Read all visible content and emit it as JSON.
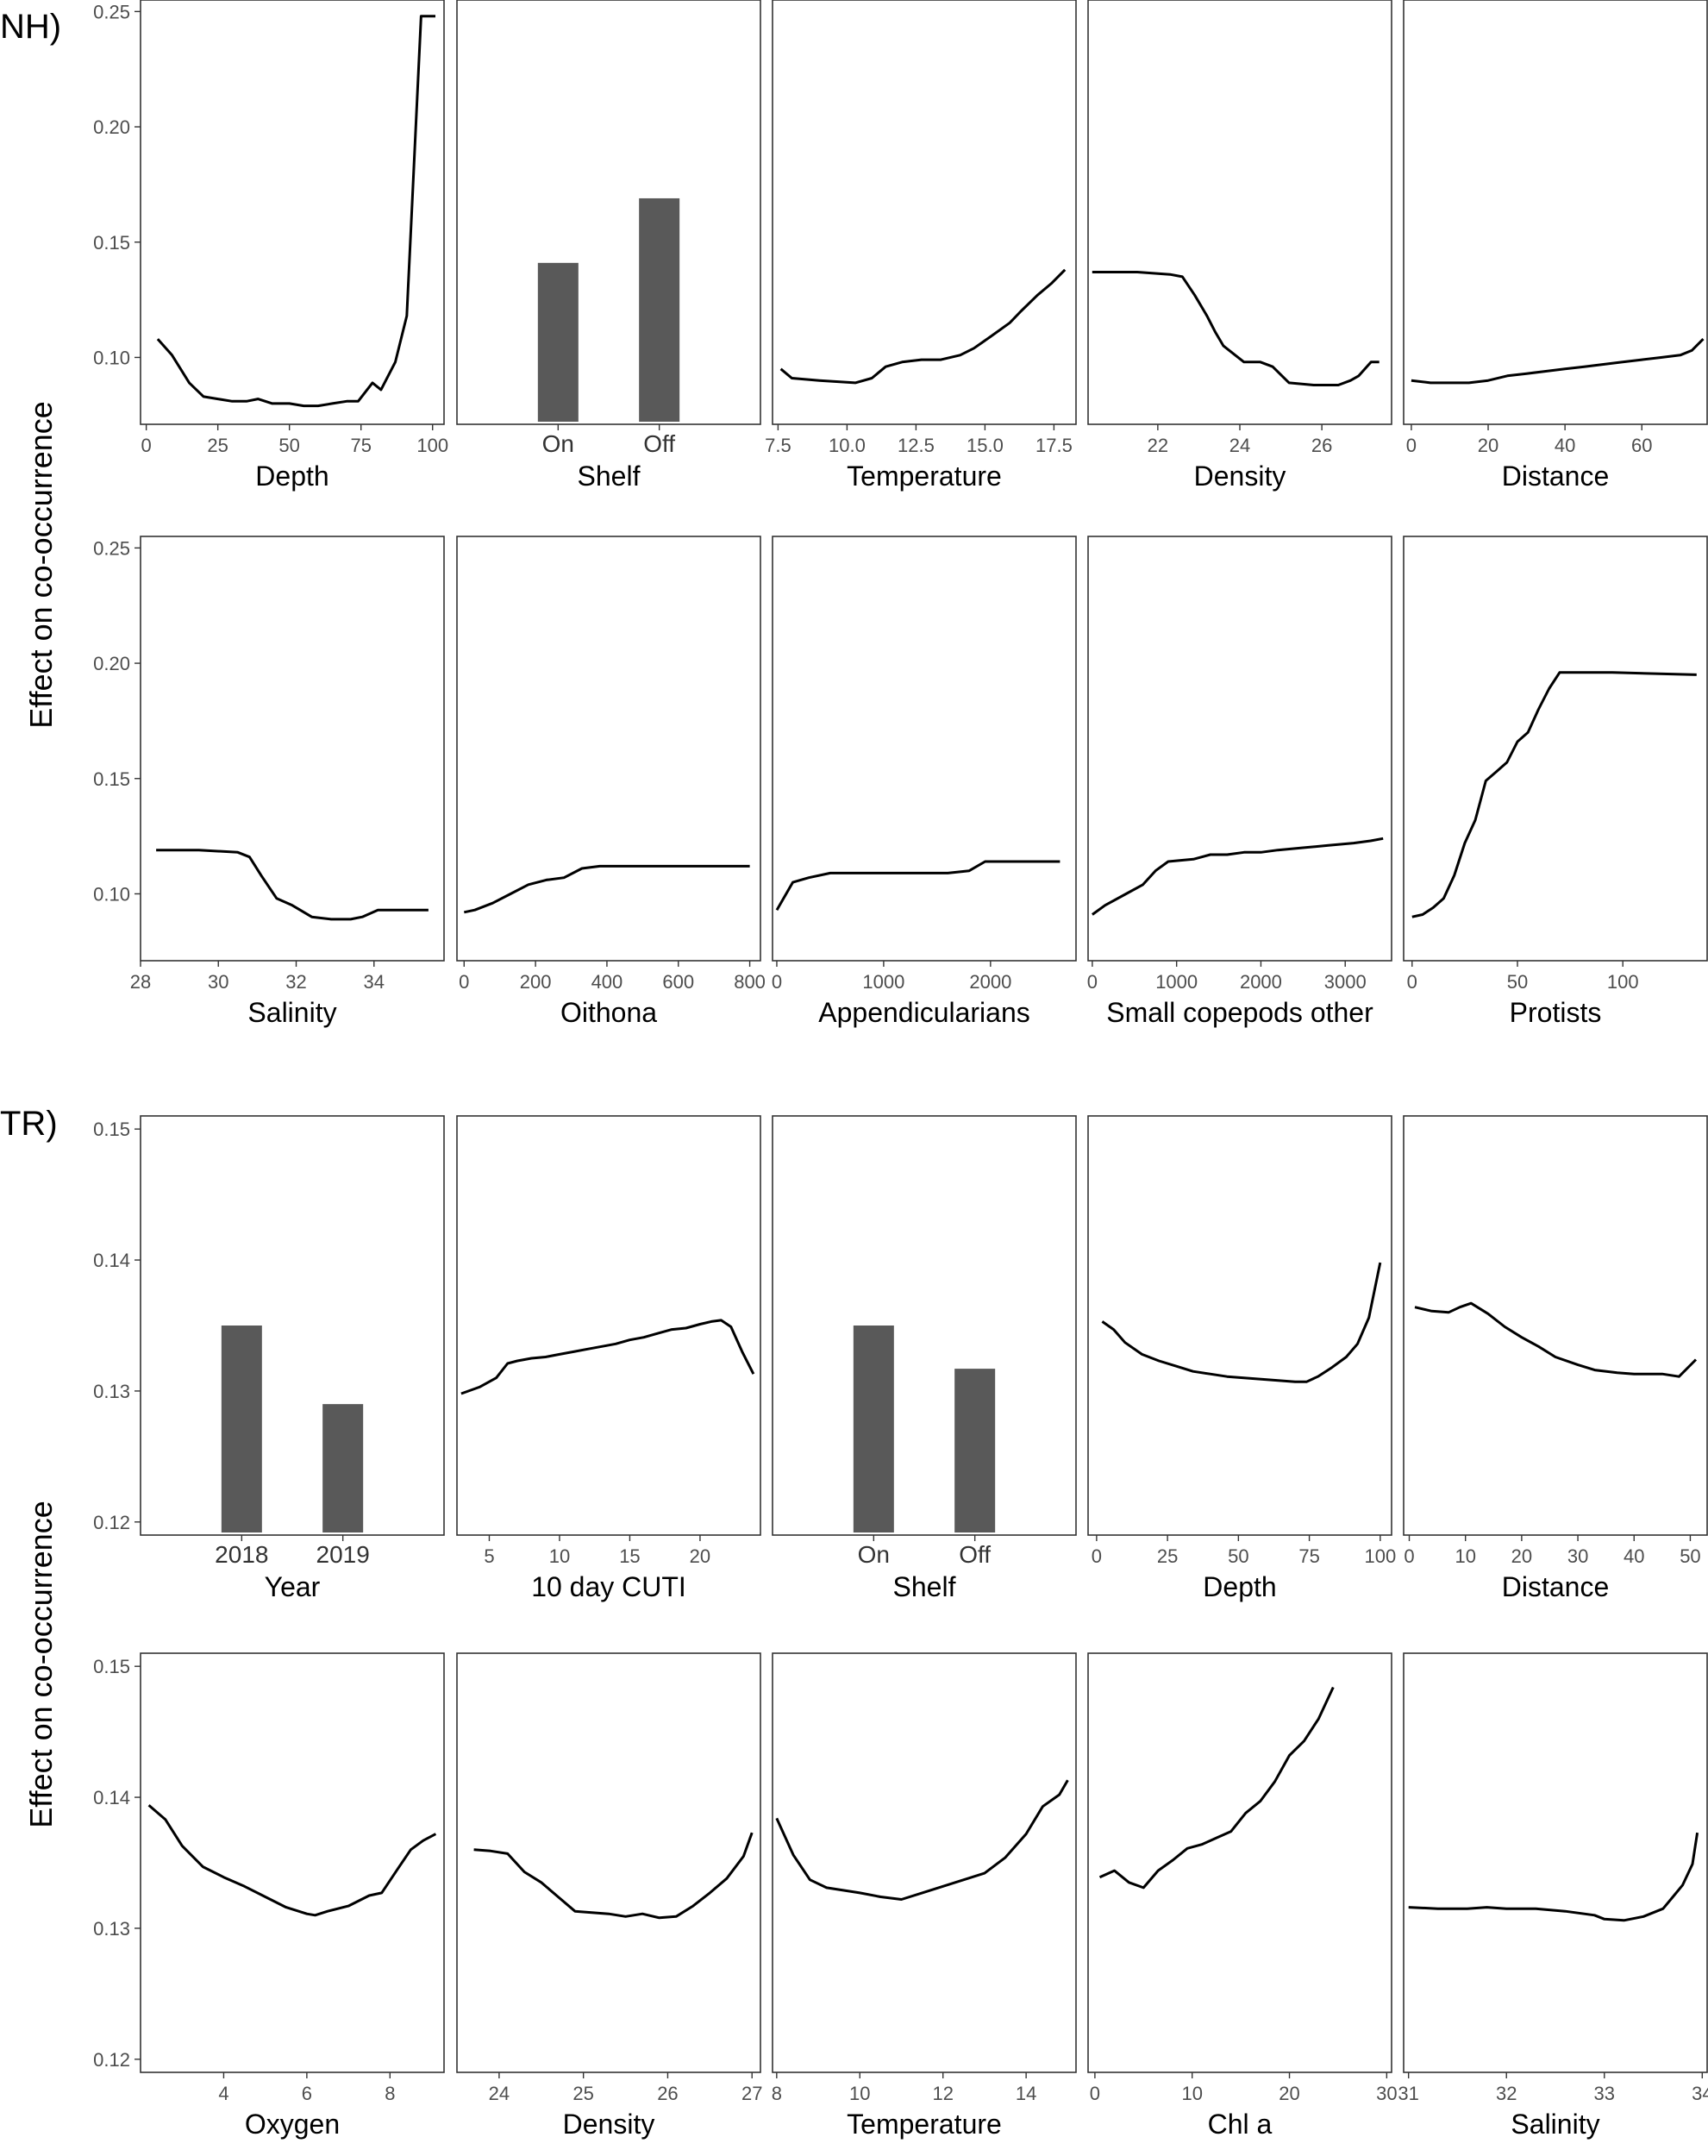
{
  "colors": {
    "bar": "#595959",
    "line": "#000000",
    "frame": "#333333",
    "tick_text": "#4d4d4d"
  },
  "groups": [
    {
      "label": "NH)",
      "ylabel": "Effect on co-occurrence"
    },
    {
      "label": "TR)",
      "ylabel": "Effect on co-occurrence"
    }
  ],
  "chart_data": [
    {
      "group": 0,
      "type": "line",
      "xlabel": "Depth",
      "xlim": [
        -2,
        104
      ],
      "xticks": [
        0,
        25,
        50,
        75,
        100
      ],
      "ylim": [
        0.071,
        0.255
      ],
      "yticks": [
        0.1,
        0.15,
        0.2,
        0.25
      ],
      "ytick_labels": [
        "0.10",
        "0.15",
        "0.20",
        "0.25"
      ],
      "x": [
        4,
        9,
        15,
        20,
        25,
        30,
        35,
        39,
        44,
        50,
        55,
        60,
        65,
        70,
        74,
        79,
        82,
        87,
        91,
        96,
        101
      ],
      "y": [
        0.108,
        0.101,
        0.089,
        0.083,
        0.082,
        0.081,
        0.081,
        0.082,
        0.08,
        0.08,
        0.079,
        0.079,
        0.08,
        0.081,
        0.081,
        0.089,
        0.086,
        0.098,
        0.118,
        0.248,
        0.248
      ]
    },
    {
      "group": 0,
      "type": "bar",
      "xlabel": "Shelf",
      "ylim": [
        0.071,
        0.255
      ],
      "categories": [
        "On",
        "Off"
      ],
      "values": [
        0.141,
        0.169
      ]
    },
    {
      "group": 0,
      "type": "line",
      "xlabel": "Temperature",
      "xlim": [
        7.3,
        18.3
      ],
      "xticks": [
        7.5,
        10,
        12.5,
        15,
        17.5
      ],
      "xtick_labels": [
        "7.5",
        "10.0",
        "12.5",
        "15.0",
        "17.5"
      ],
      "ylim": [
        0.071,
        0.255
      ],
      "x": [
        7.6,
        8.0,
        9.0,
        10.3,
        10.9,
        11.4,
        12.0,
        12.7,
        13.4,
        14.1,
        14.6,
        15.2,
        15.9,
        16.3,
        16.9,
        17.4,
        17.9
      ],
      "y": [
        0.095,
        0.091,
        0.09,
        0.089,
        0.091,
        0.096,
        0.098,
        0.099,
        0.099,
        0.101,
        0.104,
        0.109,
        0.115,
        0.12,
        0.127,
        0.132,
        0.138
      ]
    },
    {
      "group": 0,
      "type": "line",
      "xlabel": "Density",
      "xlim": [
        20.3,
        27.7
      ],
      "xticks": [
        22,
        24,
        26
      ],
      "ylim": [
        0.071,
        0.255
      ],
      "x": [
        20.4,
        21.5,
        22.3,
        22.6,
        22.9,
        23.2,
        23.4,
        23.6,
        24.1,
        24.5,
        24.8,
        25.2,
        25.8,
        26.4,
        26.7,
        26.9,
        27.2,
        27.4
      ],
      "y": [
        0.137,
        0.137,
        0.136,
        0.135,
        0.127,
        0.118,
        0.111,
        0.105,
        0.098,
        0.098,
        0.096,
        0.089,
        0.088,
        0.088,
        0.09,
        0.092,
        0.098,
        0.098
      ]
    },
    {
      "group": 0,
      "type": "line",
      "xlabel": "Distance",
      "xlim": [
        -2,
        77
      ],
      "xticks": [
        0,
        20,
        40,
        60
      ],
      "ylim": [
        0.071,
        0.255
      ],
      "x": [
        0,
        5,
        10,
        15,
        20,
        25,
        30,
        35,
        40,
        45,
        50,
        55,
        60,
        65,
        70,
        73,
        76
      ],
      "y": [
        0.09,
        0.089,
        0.089,
        0.089,
        0.09,
        0.092,
        0.093,
        0.094,
        0.095,
        0.096,
        0.097,
        0.098,
        0.099,
        0.1,
        0.101,
        0.103,
        0.108
      ]
    },
    {
      "group": 0,
      "type": "line",
      "xlabel": "Salinity",
      "xlim": [
        28,
        35.8
      ],
      "xticks": [
        28,
        30,
        32,
        34
      ],
      "ylim": [
        0.071,
        0.255
      ],
      "x": [
        28.4,
        29.5,
        30.5,
        30.8,
        31.1,
        31.5,
        31.9,
        32.4,
        32.9,
        33.4,
        33.7,
        34.1,
        35.4
      ],
      "y": [
        0.119,
        0.119,
        0.118,
        0.116,
        0.108,
        0.098,
        0.095,
        0.09,
        0.089,
        0.089,
        0.09,
        0.093,
        0.093
      ]
    },
    {
      "group": 0,
      "type": "line",
      "xlabel": "Oithona",
      "xlim": [
        -20,
        830
      ],
      "xticks": [
        0,
        200,
        400,
        600,
        800
      ],
      "ylim": [
        0.071,
        0.255
      ],
      "x": [
        0,
        30,
        80,
        130,
        180,
        230,
        280,
        330,
        380,
        430,
        480,
        530,
        580,
        630,
        680,
        730,
        800
      ],
      "y": [
        0.092,
        0.093,
        0.096,
        0.1,
        0.104,
        0.106,
        0.107,
        0.111,
        0.112,
        0.112,
        0.112,
        0.112,
        0.112,
        0.112,
        0.112,
        0.112,
        0.112
      ]
    },
    {
      "group": 0,
      "type": "line",
      "xlabel": "Appendicularians",
      "xlim": [
        -40,
        2800
      ],
      "xticks": [
        0,
        1000,
        2000
      ],
      "ylim": [
        0.071,
        0.255
      ],
      "x": [
        0,
        150,
        300,
        500,
        800,
        1200,
        1600,
        1800,
        1950,
        2300,
        2650
      ],
      "y": [
        0.093,
        0.105,
        0.107,
        0.109,
        0.109,
        0.109,
        0.109,
        0.11,
        0.114,
        0.114,
        0.114
      ]
    },
    {
      "group": 0,
      "type": "line",
      "xlabel": "Small copepods other",
      "xlim": [
        -50,
        3550
      ],
      "xticks": [
        0,
        1000,
        2000,
        3000
      ],
      "ylim": [
        0.071,
        0.255
      ],
      "x": [
        0,
        150,
        400,
        600,
        750,
        900,
        1200,
        1400,
        1600,
        1800,
        2000,
        2200,
        2500,
        2800,
        3100,
        3300,
        3450
      ],
      "y": [
        0.091,
        0.095,
        0.1,
        0.104,
        0.11,
        0.114,
        0.115,
        0.117,
        0.117,
        0.118,
        0.118,
        0.119,
        0.12,
        0.121,
        0.122,
        0.123,
        0.124
      ]
    },
    {
      "group": 0,
      "type": "line",
      "xlabel": "Protists",
      "xlim": [
        -4,
        140
      ],
      "xticks": [
        0,
        50,
        100
      ],
      "ylim": [
        0.071,
        0.255
      ],
      "x": [
        0,
        5,
        10,
        15,
        20,
        25,
        30,
        35,
        40,
        45,
        50,
        55,
        60,
        65,
        70,
        75,
        80,
        85,
        90,
        95,
        135
      ],
      "y": [
        0.09,
        0.091,
        0.094,
        0.098,
        0.108,
        0.122,
        0.132,
        0.149,
        0.153,
        0.157,
        0.166,
        0.17,
        0.18,
        0.189,
        0.196,
        0.196,
        0.196,
        0.196,
        0.196,
        0.196,
        0.195
      ]
    },
    {
      "group": 1,
      "type": "bar",
      "xlabel": "Year",
      "ylim": [
        0.119,
        0.151
      ],
      "yticks": [
        0.12,
        0.13,
        0.14,
        0.15
      ],
      "ytick_labels": [
        "0.12",
        "0.13",
        "0.14",
        "0.15"
      ],
      "categories": [
        "2018",
        "2019"
      ],
      "values": [
        0.135,
        0.129
      ]
    },
    {
      "group": 1,
      "type": "line",
      "xlabel": "10 day CUTI",
      "xlim": [
        2.7,
        24.3
      ],
      "xticks": [
        5,
        10,
        15,
        20
      ],
      "ylim": [
        0.119,
        0.151
      ],
      "x": [
        3.0,
        4.3,
        5.5,
        6.3,
        7.0,
        8.0,
        9.0,
        10.0,
        11.0,
        12.0,
        13.0,
        14.0,
        15.0,
        16.0,
        17.0,
        18.0,
        19.0,
        20.0,
        20.8,
        21.5,
        22.2,
        23.0,
        23.8
      ],
      "y": [
        0.1298,
        0.1303,
        0.131,
        0.1321,
        0.1323,
        0.1325,
        0.1326,
        0.1328,
        0.133,
        0.1332,
        0.1334,
        0.1336,
        0.1339,
        0.1341,
        0.1344,
        0.1347,
        0.1348,
        0.1351,
        0.1353,
        0.1354,
        0.1349,
        0.133,
        0.1313
      ]
    },
    {
      "group": 1,
      "type": "bar",
      "xlabel": "Shelf",
      "ylim": [
        0.119,
        0.151
      ],
      "categories": [
        "On",
        "Off"
      ],
      "values": [
        0.135,
        0.1317
      ]
    },
    {
      "group": 1,
      "type": "line",
      "xlabel": "Depth",
      "xlim": [
        -3,
        104
      ],
      "xticks": [
        0,
        25,
        50,
        75,
        100
      ],
      "ylim": [
        0.119,
        0.151
      ],
      "x": [
        2,
        6,
        10,
        16,
        22,
        28,
        34,
        40,
        46,
        52,
        58,
        64,
        70,
        74,
        78,
        83,
        88,
        92,
        96,
        100
      ],
      "y": [
        0.1353,
        0.1347,
        0.1337,
        0.1328,
        0.1323,
        0.1319,
        0.1315,
        0.1313,
        0.1311,
        0.131,
        0.1309,
        0.1308,
        0.1307,
        0.1307,
        0.1311,
        0.1318,
        0.1326,
        0.1336,
        0.1356,
        0.1398
      ]
    },
    {
      "group": 1,
      "type": "line",
      "xlabel": "Distance",
      "xlim": [
        -1,
        53
      ],
      "xticks": [
        0,
        10,
        20,
        30,
        40,
        50
      ],
      "ylim": [
        0.119,
        0.151
      ],
      "x": [
        1,
        4,
        7,
        9,
        11,
        14,
        17,
        20,
        23,
        26,
        30,
        33,
        37,
        40,
        43,
        45,
        48,
        51
      ],
      "y": [
        0.1364,
        0.1361,
        0.136,
        0.1364,
        0.1367,
        0.1359,
        0.1349,
        0.1341,
        0.1334,
        0.1326,
        0.132,
        0.1316,
        0.1314,
        0.1313,
        0.1313,
        0.1313,
        0.1311,
        0.1324
      ]
    },
    {
      "group": 1,
      "type": "line",
      "xlabel": "Oxygen",
      "xlim": [
        2.0,
        9.3
      ],
      "xticks": [
        4,
        6,
        8
      ],
      "ylim": [
        0.119,
        0.151
      ],
      "x": [
        2.2,
        2.6,
        3.0,
        3.5,
        4.0,
        4.5,
        5.0,
        5.5,
        6.0,
        6.2,
        6.5,
        7.0,
        7.5,
        7.8,
        8.2,
        8.5,
        8.8,
        9.1
      ],
      "y": [
        0.1394,
        0.1383,
        0.1363,
        0.1347,
        0.1339,
        0.1332,
        0.1324,
        0.1316,
        0.1311,
        0.131,
        0.1313,
        0.1317,
        0.1325,
        0.1327,
        0.1346,
        0.136,
        0.1367,
        0.1372
      ]
    },
    {
      "group": 1,
      "type": "line",
      "xlabel": "Density",
      "xlim": [
        23.5,
        27.1
      ],
      "xticks": [
        24,
        25,
        26,
        27
      ],
      "ylim": [
        0.119,
        0.151
      ],
      "x": [
        23.7,
        23.9,
        24.1,
        24.3,
        24.5,
        24.7,
        24.9,
        25.1,
        25.3,
        25.5,
        25.7,
        25.9,
        26.1,
        26.3,
        26.5,
        26.7,
        26.9,
        27.0
      ],
      "y": [
        0.136,
        0.1359,
        0.1357,
        0.1343,
        0.1335,
        0.1324,
        0.1313,
        0.1312,
        0.1311,
        0.1309,
        0.1311,
        0.1308,
        0.1309,
        0.1317,
        0.1327,
        0.1338,
        0.1355,
        0.1373
      ]
    },
    {
      "group": 1,
      "type": "line",
      "xlabel": "Temperature",
      "xlim": [
        7.9,
        15.2
      ],
      "xticks": [
        8,
        10,
        12,
        14
      ],
      "ylim": [
        0.119,
        0.151
      ],
      "x": [
        8.0,
        8.4,
        8.8,
        9.2,
        9.6,
        10.0,
        10.5,
        11.0,
        11.5,
        12.0,
        12.5,
        13.0,
        13.5,
        14.0,
        14.4,
        14.8,
        15.0
      ],
      "y": [
        0.1384,
        0.1356,
        0.1337,
        0.1331,
        0.1329,
        0.1327,
        0.1324,
        0.1322,
        0.1327,
        0.1332,
        0.1337,
        0.1342,
        0.1354,
        0.1372,
        0.1393,
        0.1402,
        0.1413
      ]
    },
    {
      "group": 1,
      "type": "line",
      "xlabel": "Chl a",
      "xlim": [
        -0.7,
        30.5
      ],
      "xticks": [
        0,
        10,
        20,
        30
      ],
      "ylim": [
        0.119,
        0.151
      ],
      "x": [
        0.5,
        2,
        3.5,
        5,
        6.5,
        8,
        9.5,
        11,
        12.5,
        14,
        15.5,
        17,
        18.5,
        20,
        21.5,
        23,
        24.5
      ],
      "y": [
        0.1339,
        0.1344,
        0.1335,
        0.1331,
        0.1344,
        0.1352,
        0.1361,
        0.1364,
        0.1369,
        0.1374,
        0.1388,
        0.1397,
        0.1412,
        0.1432,
        0.1443,
        0.146,
        0.1484
      ]
    },
    {
      "group": 1,
      "type": "line",
      "xlabel": "Salinity",
      "xlim": [
        30.95,
        34.05
      ],
      "xticks": [
        31,
        32,
        33,
        34
      ],
      "ylim": [
        0.119,
        0.151
      ],
      "x": [
        31.0,
        31.3,
        31.6,
        31.8,
        32.0,
        32.3,
        32.6,
        32.9,
        33.0,
        33.2,
        33.4,
        33.6,
        33.7,
        33.8,
        33.9,
        33.95
      ],
      "y": [
        0.1316,
        0.1315,
        0.1315,
        0.1316,
        0.1315,
        0.1315,
        0.1313,
        0.131,
        0.1307,
        0.1306,
        0.1309,
        0.1315,
        0.1324,
        0.1333,
        0.1349,
        0.1373
      ]
    }
  ]
}
